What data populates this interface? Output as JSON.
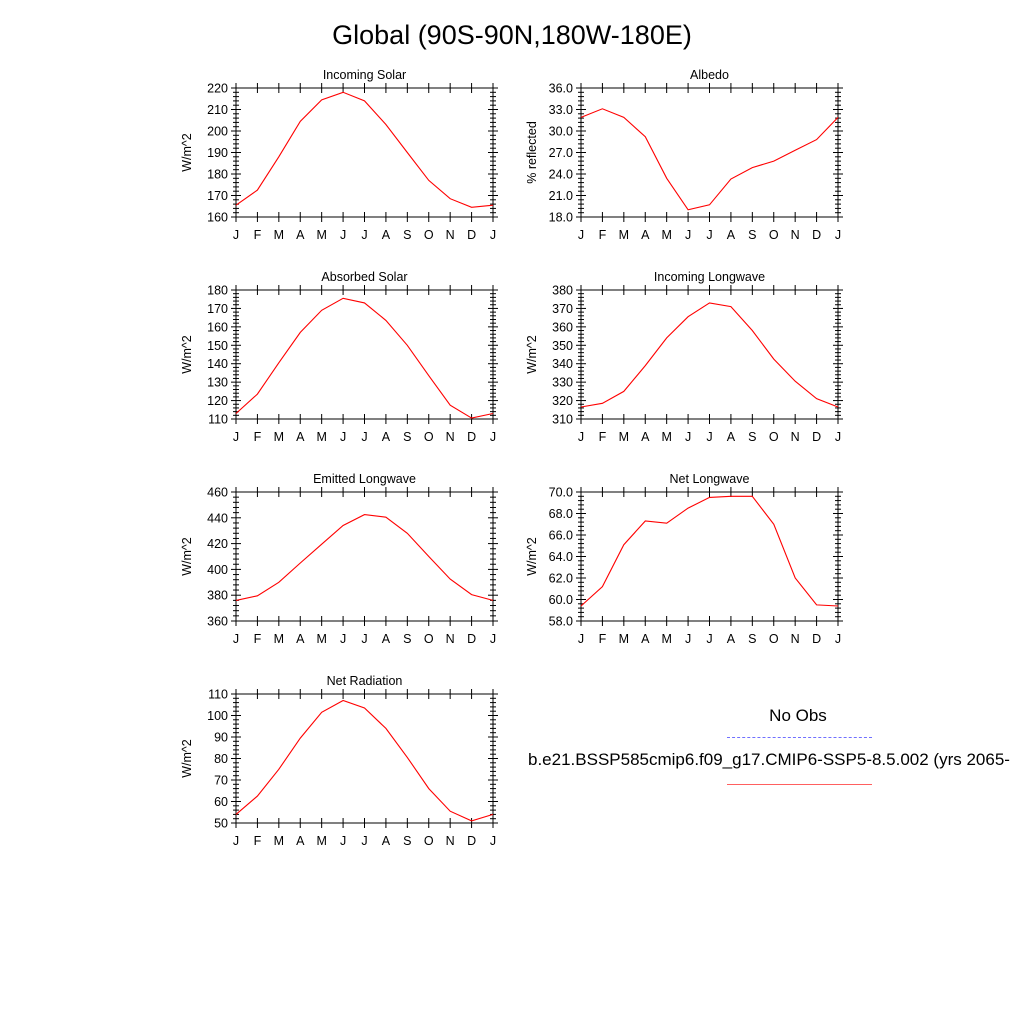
{
  "figure_title": "Global (90S-90N,180W-180E)",
  "legend": {
    "obs_label": "No Obs",
    "case_label": "b.e21.BSSP585cmip6.f09_g17.CMIP6-SSP5-8.5.002 (yrs 2065-",
    "obs_color": "#7070ff",
    "case_color": "#ff0000"
  },
  "chart_data": [
    {
      "type": "line",
      "title": "Incoming Solar",
      "ylabel": "W/m^2",
      "categories": [
        "J",
        "F",
        "M",
        "A",
        "M",
        "J",
        "J",
        "A",
        "S",
        "O",
        "N",
        "D",
        "J"
      ],
      "ylim": [
        160,
        220
      ],
      "yticks": [
        "160",
        "170",
        "180",
        "190",
        "200",
        "210",
        "220"
      ],
      "series": [
        {
          "values": [
            165.5,
            172.5,
            188,
            204.5,
            214.5,
            218,
            214,
            203,
            190,
            177,
            168.5,
            164.5,
            165.5
          ]
        }
      ]
    },
    {
      "type": "line",
      "title": "Albedo",
      "ylabel": "% reflected",
      "categories": [
        "J",
        "F",
        "M",
        "A",
        "M",
        "J",
        "J",
        "A",
        "S",
        "O",
        "N",
        "D",
        "J"
      ],
      "ylim": [
        18,
        36
      ],
      "yticks": [
        "18.0",
        "21.0",
        "24.0",
        "27.0",
        "30.0",
        "33.0",
        "36.0"
      ],
      "series": [
        {
          "values": [
            31.9,
            33.1,
            31.9,
            29.2,
            23.4,
            19.0,
            19.7,
            23.3,
            24.9,
            25.8,
            27.3,
            28.8,
            31.9
          ]
        }
      ]
    },
    {
      "type": "line",
      "title": "Absorbed Solar",
      "ylabel": "W/m^2",
      "categories": [
        "J",
        "F",
        "M",
        "A",
        "M",
        "J",
        "J",
        "A",
        "S",
        "O",
        "N",
        "D",
        "J"
      ],
      "ylim": [
        110,
        180
      ],
      "yticks": [
        "110",
        "120",
        "130",
        "140",
        "150",
        "160",
        "170",
        "180"
      ],
      "series": [
        {
          "values": [
            113,
            123.5,
            140.5,
            157,
            169,
            175.5,
            173,
            163.5,
            150,
            133.5,
            117.5,
            110.5,
            113
          ]
        }
      ]
    },
    {
      "type": "line",
      "title": "Incoming Longwave",
      "ylabel": "W/m^2",
      "categories": [
        "J",
        "F",
        "M",
        "A",
        "M",
        "J",
        "J",
        "A",
        "S",
        "O",
        "N",
        "D",
        "J"
      ],
      "ylim": [
        310,
        380
      ],
      "yticks": [
        "310",
        "320",
        "330",
        "340",
        "350",
        "360",
        "370",
        "380"
      ],
      "series": [
        {
          "values": [
            316.5,
            318.5,
            325,
            339,
            354,
            365.5,
            373,
            371,
            358,
            342.5,
            330.5,
            321,
            316.5
          ]
        }
      ]
    },
    {
      "type": "line",
      "title": "Emitted Longwave",
      "ylabel": "W/m^2",
      "categories": [
        "J",
        "F",
        "M",
        "A",
        "M",
        "J",
        "J",
        "A",
        "S",
        "O",
        "N",
        "D",
        "J"
      ],
      "ylim": [
        360,
        460
      ],
      "yticks": [
        "360",
        "380",
        "400",
        "420",
        "440",
        "460"
      ],
      "series": [
        {
          "values": [
            376,
            379.5,
            390,
            405,
            419.5,
            434,
            442.5,
            440.5,
            428,
            410,
            392.5,
            380.5,
            376
          ]
        }
      ]
    },
    {
      "type": "line",
      "title": "Net Longwave",
      "ylabel": "W/m^2",
      "categories": [
        "J",
        "F",
        "M",
        "A",
        "M",
        "J",
        "J",
        "A",
        "S",
        "O",
        "N",
        "D",
        "J"
      ],
      "ylim": [
        58,
        70
      ],
      "yticks": [
        "58.0",
        "60.0",
        "62.0",
        "64.0",
        "66.0",
        "68.0",
        "70.0"
      ],
      "series": [
        {
          "values": [
            59.4,
            61.2,
            65.1,
            67.3,
            67.1,
            68.5,
            69.5,
            69.6,
            69.6,
            67.0,
            62.0,
            59.5,
            59.4
          ]
        }
      ]
    },
    {
      "type": "line",
      "title": "Net Radiation",
      "ylabel": "W/m^2",
      "categories": [
        "J",
        "F",
        "M",
        "A",
        "M",
        "J",
        "J",
        "A",
        "S",
        "O",
        "N",
        "D",
        "J"
      ],
      "ylim": [
        50,
        110
      ],
      "yticks": [
        "50",
        "60",
        "70",
        "80",
        "90",
        "100",
        "110"
      ],
      "series": [
        {
          "values": [
            54,
            62.5,
            75,
            89.5,
            101.5,
            107,
            103.5,
            94,
            80.5,
            66,
            55.5,
            51,
            54
          ]
        }
      ]
    }
  ]
}
